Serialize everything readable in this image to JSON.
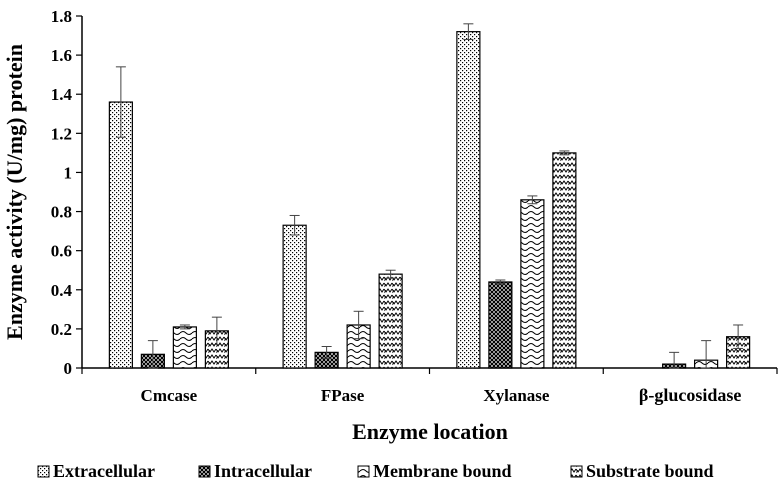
{
  "chart_data": {
    "type": "bar",
    "categories": [
      "Cmcase",
      "FPase",
      "Xylanase",
      "β-glucosidase"
    ],
    "series": [
      {
        "name": "Extracellular",
        "values": [
          1.36,
          0.73,
          1.72,
          0.0
        ],
        "errors": [
          0.18,
          0.05,
          0.04,
          0.0
        ],
        "pattern": "dots"
      },
      {
        "name": "Intracellular",
        "values": [
          0.07,
          0.08,
          0.44,
          0.02
        ],
        "errors": [
          0.07,
          0.03,
          0.01,
          0.06
        ],
        "pattern": "cross"
      },
      {
        "name": "Membrane bound",
        "values": [
          0.21,
          0.22,
          0.86,
          0.04
        ],
        "errors": [
          0.01,
          0.07,
          0.02,
          0.1
        ],
        "pattern": "wave"
      },
      {
        "name": "Substrate bound",
        "values": [
          0.19,
          0.48,
          1.1,
          0.16
        ],
        "errors": [
          0.07,
          0.02,
          0.01,
          0.06
        ],
        "pattern": "zigzag"
      }
    ],
    "xlabel": "Enzyme location",
    "ylabel": "Enzyme activity (U/mg) protein",
    "ylim": [
      0,
      1.8
    ],
    "yticks": [
      "0",
      "0.2",
      "0.4",
      "0.6",
      "0.8",
      "1",
      "1.2",
      "1.4",
      "1.6",
      "1.8"
    ],
    "ytick_values": [
      0,
      0.2,
      0.4,
      0.6,
      0.8,
      1.0,
      1.2,
      1.4,
      1.6,
      1.8
    ],
    "grid": false,
    "legend_position": "bottom"
  }
}
